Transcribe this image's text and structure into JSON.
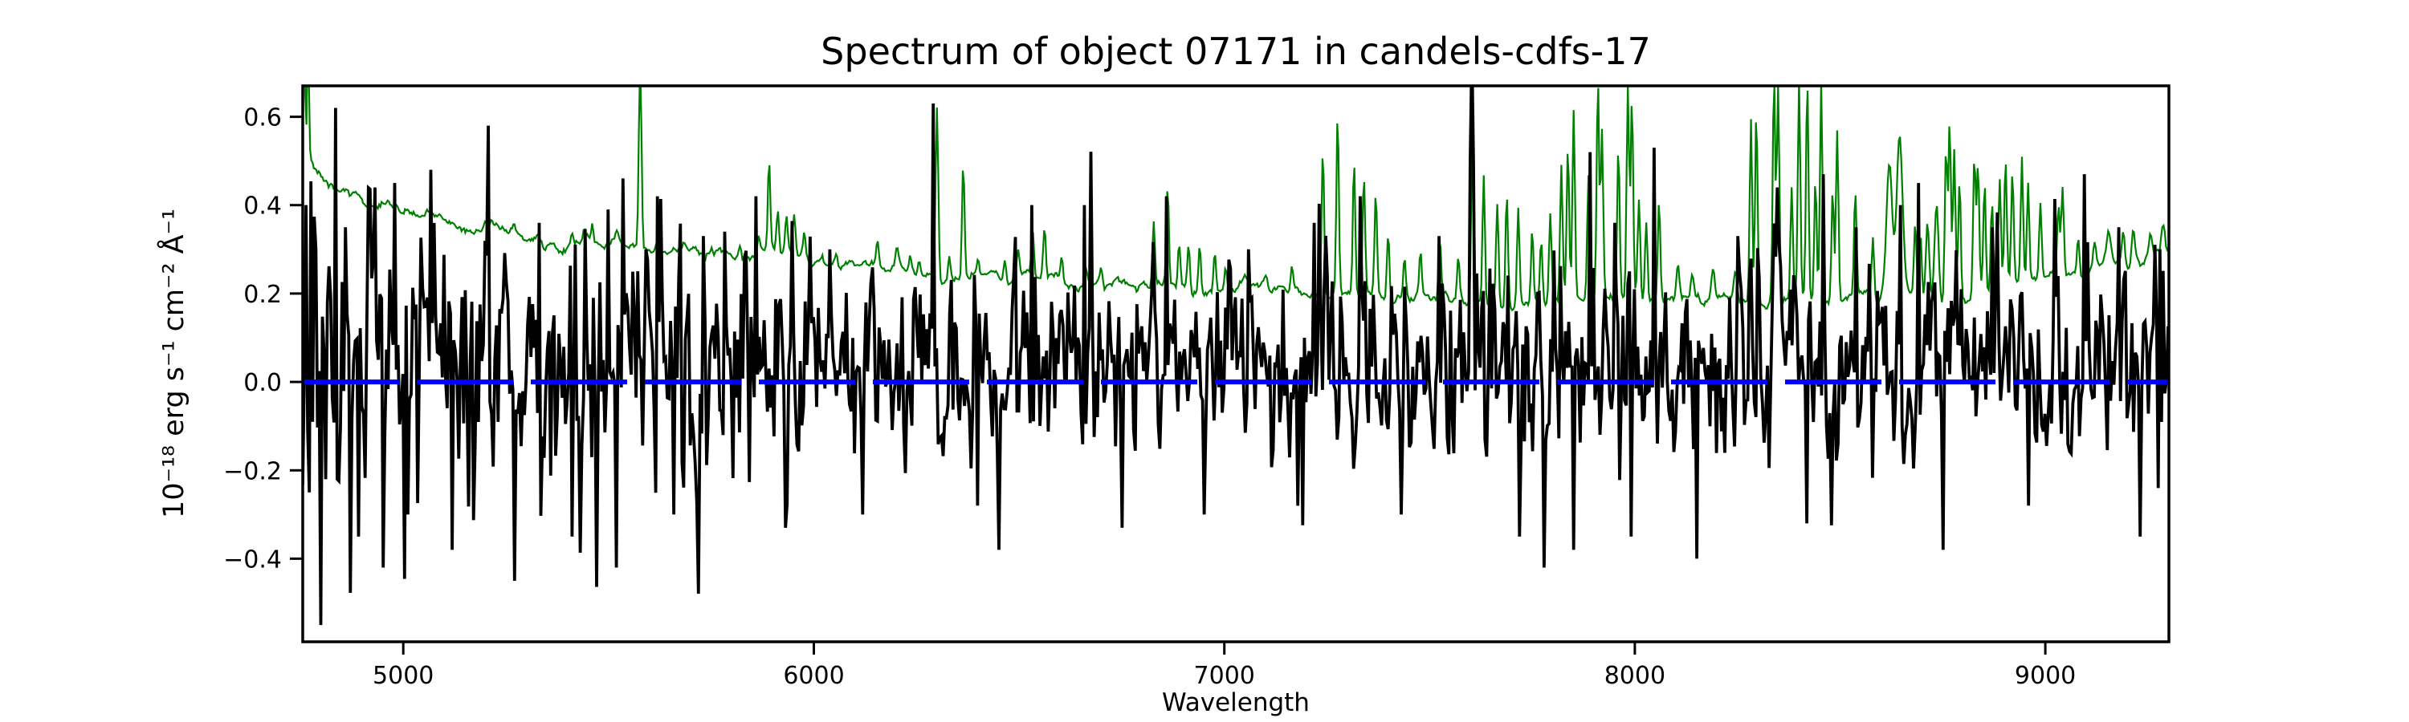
{
  "figure": {
    "background": "#ffffff"
  },
  "chart_data": {
    "type": "line",
    "title": "Spectrum of object 07171 in candels-cdfs-17",
    "xlabel": "Wavelength",
    "ylabel": "10⁻¹⁸ erg s⁻¹ cm⁻² Å⁻¹",
    "xlim": [
      4755,
      9301
    ],
    "ylim": [
      -0.588,
      0.67
    ],
    "xticks": [
      5000,
      6000,
      7000,
      8000,
      9000
    ],
    "yticks": [
      -0.4,
      -0.2,
      0.0,
      0.2,
      0.4,
      0.6
    ],
    "grid": false,
    "legend": false,
    "frame_color": "#000000",
    "series": [
      {
        "name": "observed-flux",
        "kind": "noisy-spectrum",
        "color": "#000000",
        "linewidth": 3.8,
        "sample_step_angstrom": 4,
        "seed": 20170717,
        "ar_coefficient": 0.25,
        "heavy_tail_probability": 0.05,
        "heavy_tail_scale": 2.1,
        "sky_coupling": {
          "factor": 0.9,
          "cap": 0.5
        },
        "mean_envelope": [
          [
            4755,
            0.08
          ],
          [
            4900,
            0.065
          ],
          [
            5100,
            0.055
          ],
          [
            5400,
            0.045
          ],
          [
            5800,
            0.038
          ],
          [
            6200,
            0.032
          ],
          [
            6600,
            0.028
          ],
          [
            7000,
            0.022
          ],
          [
            7400,
            0.02
          ],
          [
            7800,
            0.02
          ],
          [
            8200,
            0.025
          ],
          [
            8600,
            0.035
          ],
          [
            9000,
            0.05
          ],
          [
            9150,
            0.07
          ],
          [
            9301,
            0.1
          ]
        ],
        "sigma_envelope": [
          [
            4755,
            0.21
          ],
          [
            4850,
            0.18
          ],
          [
            5000,
            0.16
          ],
          [
            5200,
            0.14
          ],
          [
            5500,
            0.125
          ],
          [
            5800,
            0.115
          ],
          [
            6100,
            0.105
          ],
          [
            6500,
            0.1
          ],
          [
            7000,
            0.092
          ],
          [
            7400,
            0.095
          ],
          [
            7700,
            0.1
          ],
          [
            8000,
            0.1
          ],
          [
            8300,
            0.098
          ],
          [
            8600,
            0.1
          ],
          [
            9000,
            0.1
          ],
          [
            9301,
            0.11
          ]
        ],
        "pinned_features": [
          [
            4762,
            0.4
          ],
          [
            4772,
            -0.25
          ],
          [
            4786,
            0.3
          ],
          [
            4800,
            -0.55
          ],
          [
            4812,
            -0.22
          ],
          [
            4834,
            0.62
          ],
          [
            4846,
            -0.1
          ],
          [
            4860,
            0.35
          ],
          [
            4890,
            -0.35
          ],
          [
            4930,
            0.44
          ],
          [
            4950,
            -0.42
          ],
          [
            4980,
            0.45
          ],
          [
            5010,
            -0.3
          ],
          [
            5065,
            0.48
          ],
          [
            5120,
            -0.38
          ],
          [
            5208,
            0.58
          ],
          [
            5270,
            -0.45
          ],
          [
            5330,
            0.36
          ],
          [
            5410,
            -0.35
          ],
          [
            5498,
            0.39
          ],
          [
            5520,
            -0.42
          ],
          [
            5590,
            0.3
          ],
          [
            5660,
            -0.3
          ],
          [
            5730,
            0.33
          ],
          [
            5782,
            0.34
          ],
          [
            5860,
            0.42
          ],
          [
            5930,
            -0.33
          ],
          [
            6040,
            0.3
          ],
          [
            6120,
            -0.3
          ],
          [
            6290,
            0.63
          ],
          [
            6400,
            -0.28
          ],
          [
            6450,
            -0.38
          ],
          [
            6530,
            0.4
          ],
          [
            6660,
            0.4
          ],
          [
            6750,
            -0.33
          ],
          [
            6860,
            0.42
          ],
          [
            6950,
            -0.3
          ],
          [
            7060,
            0.3
          ],
          [
            7180,
            -0.28
          ],
          [
            7220,
            0.36
          ],
          [
            7330,
            0.42
          ],
          [
            7430,
            -0.3
          ],
          [
            7524,
            0.33
          ],
          [
            7600,
            0.5
          ],
          [
            7720,
            -0.35
          ],
          [
            7780,
            -0.42
          ],
          [
            7850,
            -0.38
          ],
          [
            7890,
            0.52
          ],
          [
            7990,
            -0.35
          ],
          [
            8047,
            0.53
          ],
          [
            8150,
            -0.4
          ],
          [
            8250,
            0.33
          ],
          [
            8345,
            0.44
          ],
          [
            8420,
            -0.32
          ],
          [
            8457,
            0.47
          ],
          [
            8540,
            0.35
          ],
          [
            8647,
            0.4
          ],
          [
            8690,
            0.45
          ],
          [
            8750,
            -0.38
          ],
          [
            8870,
            0.35
          ],
          [
            8960,
            -0.28
          ],
          [
            9096,
            0.47
          ],
          [
            9180,
            0.35
          ],
          [
            9230,
            -0.35
          ],
          [
            9280,
            0.3
          ]
        ]
      },
      {
        "name": "noise-spectrum",
        "kind": "continuum-plus-skylines",
        "color": "#008000",
        "linewidth": 2.2,
        "sample_step_angstrom": 3,
        "seed": 7171,
        "wiggle_sigma": 0.0045,
        "wiggle_ar": 0.9,
        "continuum": [
          [
            4755,
            0.7
          ],
          [
            4762,
            0.55
          ],
          [
            4775,
            0.5
          ],
          [
            4800,
            0.465
          ],
          [
            4850,
            0.435
          ],
          [
            4900,
            0.415
          ],
          [
            4950,
            0.4
          ],
          [
            5000,
            0.385
          ],
          [
            5060,
            0.37
          ],
          [
            5120,
            0.358
          ],
          [
            5200,
            0.347
          ],
          [
            5300,
            0.335
          ],
          [
            5400,
            0.323
          ],
          [
            5500,
            0.313
          ],
          [
            5600,
            0.303
          ],
          [
            5700,
            0.295
          ],
          [
            5800,
            0.288
          ],
          [
            5900,
            0.28
          ],
          [
            6000,
            0.268
          ],
          [
            6100,
            0.258
          ],
          [
            6200,
            0.252
          ],
          [
            6300,
            0.247
          ],
          [
            6400,
            0.242
          ],
          [
            6500,
            0.237
          ],
          [
            6600,
            0.23
          ],
          [
            6700,
            0.222
          ],
          [
            6800,
            0.216
          ],
          [
            6900,
            0.211
          ],
          [
            7000,
            0.207
          ],
          [
            7100,
            0.206
          ],
          [
            7200,
            0.204
          ],
          [
            7300,
            0.202
          ],
          [
            7400,
            0.198
          ],
          [
            7500,
            0.195
          ],
          [
            7600,
            0.192
          ],
          [
            7700,
            0.19
          ],
          [
            7800,
            0.189
          ],
          [
            7900,
            0.188
          ],
          [
            8000,
            0.187
          ],
          [
            8100,
            0.183
          ],
          [
            8200,
            0.182
          ],
          [
            8300,
            0.184
          ],
          [
            8400,
            0.186
          ],
          [
            8500,
            0.188
          ],
          [
            8600,
            0.19
          ],
          [
            8700,
            0.193
          ],
          [
            8800,
            0.197
          ],
          [
            8900,
            0.21
          ],
          [
            9000,
            0.235
          ],
          [
            9100,
            0.245
          ],
          [
            9200,
            0.26
          ],
          [
            9301,
            0.3
          ]
        ],
        "sky_lines": [
          [
            4757,
            0.3,
            2.5
          ],
          [
            4768,
            0.25,
            2
          ],
          [
            5199,
            0.02,
            3
          ],
          [
            5270,
            0.015,
            3
          ],
          [
            5330,
            0.02,
            3
          ],
          [
            5410,
            0.02,
            3
          ],
          [
            5440,
            0.025,
            3
          ],
          [
            5461,
            0.035,
            3
          ],
          [
            5520,
            0.02,
            3
          ],
          [
            5577,
            0.42,
            3.2
          ],
          [
            5616,
            0.02,
            3
          ],
          [
            5683,
            0.025,
            3
          ],
          [
            5750,
            0.02,
            3
          ],
          [
            5820,
            0.025,
            3
          ],
          [
            5866,
            0.04,
            3
          ],
          [
            5891,
            0.195,
            3
          ],
          [
            5912,
            0.1,
            3
          ],
          [
            5933,
            0.09,
            3
          ],
          [
            5952,
            0.08,
            3
          ],
          [
            5977,
            0.06,
            3
          ],
          [
            6055,
            0.03,
            3
          ],
          [
            6155,
            0.05,
            3
          ],
          [
            6202,
            0.04,
            3
          ],
          [
            6235,
            0.04,
            3
          ],
          [
            6257,
            0.035,
            3
          ],
          [
            6300,
            0.39,
            3.2
          ],
          [
            6330,
            0.06,
            3
          ],
          [
            6364,
            0.25,
            3
          ],
          [
            6400,
            0.04,
            3
          ],
          [
            6465,
            0.045,
            3
          ],
          [
            6498,
            0.06,
            3
          ],
          [
            6533,
            0.1,
            3
          ],
          [
            6562,
            0.12,
            3
          ],
          [
            6604,
            0.05,
            3
          ],
          [
            6662,
            0.04,
            3
          ],
          [
            6700,
            0.04,
            3
          ],
          [
            6828,
            0.15,
            3
          ],
          [
            6862,
            0.22,
            3
          ],
          [
            6890,
            0.1,
            3
          ],
          [
            6913,
            0.11,
            3
          ],
          [
            6940,
            0.11,
            3
          ],
          [
            6977,
            0.09,
            3
          ],
          [
            7003,
            0.05,
            3
          ],
          [
            7050,
            0.025,
            4
          ],
          [
            7100,
            0.025,
            4
          ],
          [
            7165,
            0.05,
            3
          ],
          [
            7240,
            0.33,
            3
          ],
          [
            7276,
            0.4,
            3
          ],
          [
            7316,
            0.3,
            3
          ],
          [
            7340,
            0.28,
            3
          ],
          [
            7369,
            0.23,
            3
          ],
          [
            7399,
            0.15,
            3
          ],
          [
            7439,
            0.09,
            3
          ],
          [
            7478,
            0.1,
            3
          ],
          [
            7525,
            0.13,
            3
          ],
          [
            7570,
            0.1,
            3
          ],
          [
            7605,
            0.44,
            3
          ],
          [
            7632,
            0.3,
            3
          ],
          [
            7665,
            0.22,
            3
          ],
          [
            7688,
            0.26,
            3
          ],
          [
            7716,
            0.21,
            3
          ],
          [
            7750,
            0.17,
            3
          ],
          [
            7772,
            0.14,
            3
          ],
          [
            7794,
            0.21,
            3
          ],
          [
            7821,
            0.3,
            3
          ],
          [
            7837,
            0.34,
            3
          ],
          [
            7851,
            0.42,
            3
          ],
          [
            7887,
            0.29,
            3
          ],
          [
            7910,
            0.5,
            3
          ],
          [
            7920,
            0.38,
            3
          ],
          [
            7960,
            0.35,
            3
          ],
          [
            7983,
            0.46,
            3
          ],
          [
            7993,
            0.44,
            3
          ],
          [
            8010,
            0.22,
            3
          ],
          [
            8028,
            0.18,
            3
          ],
          [
            8059,
            0.22,
            3
          ],
          [
            8105,
            0.08,
            4
          ],
          [
            8140,
            0.06,
            4
          ],
          [
            8190,
            0.07,
            4
          ],
          [
            8245,
            0.06,
            4
          ],
          [
            8283,
            0.41,
            3
          ],
          [
            8296,
            0.44,
            3
          ],
          [
            8339,
            0.5,
            3
          ],
          [
            8349,
            0.48,
            3
          ],
          [
            8382,
            0.25,
            3
          ],
          [
            8400,
            0.5,
            3
          ],
          [
            8420,
            0.5,
            3
          ],
          [
            8440,
            0.28,
            3
          ],
          [
            8454,
            0.5,
            3
          ],
          [
            8482,
            0.26,
            3
          ],
          [
            8493,
            0.4,
            3
          ],
          [
            8537,
            0.23,
            3
          ],
          [
            8580,
            0.14,
            3
          ],
          [
            8620,
            0.31,
            7
          ],
          [
            8645,
            0.36,
            7
          ],
          [
            8683,
            0.17,
            3
          ],
          [
            8696,
            0.14,
            3
          ],
          [
            8713,
            0.18,
            4
          ],
          [
            8735,
            0.22,
            5
          ],
          [
            8758,
            0.35,
            3
          ],
          [
            8767,
            0.4,
            3
          ],
          [
            8778,
            0.32,
            3
          ],
          [
            8791,
            0.26,
            3
          ],
          [
            8827,
            0.32,
            3
          ],
          [
            8836,
            0.28,
            3
          ],
          [
            8852,
            0.24,
            3
          ],
          [
            8870,
            0.2,
            3
          ],
          [
            8889,
            0.24,
            3
          ],
          [
            8903,
            0.28,
            3
          ],
          [
            8920,
            0.24,
            3
          ],
          [
            8943,
            0.28,
            3
          ],
          [
            8958,
            0.24,
            3
          ],
          [
            8988,
            0.18,
            3
          ],
          [
            9032,
            0.15,
            3
          ],
          [
            9042,
            0.2,
            3
          ],
          [
            9080,
            0.08,
            3
          ],
          [
            9120,
            0.06,
            4
          ],
          [
            9154,
            0.07,
            5
          ],
          [
            9190,
            0.08,
            4
          ],
          [
            9214,
            0.08,
            4
          ],
          [
            9256,
            0.06,
            4
          ],
          [
            9287,
            0.07,
            4
          ]
        ]
      },
      {
        "name": "zero-line",
        "kind": "horizontal-line",
        "color": "#0000ff",
        "linewidth": 6,
        "style": "dashed",
        "dash": [
          120,
          22
        ],
        "y": 0.0
      }
    ]
  }
}
